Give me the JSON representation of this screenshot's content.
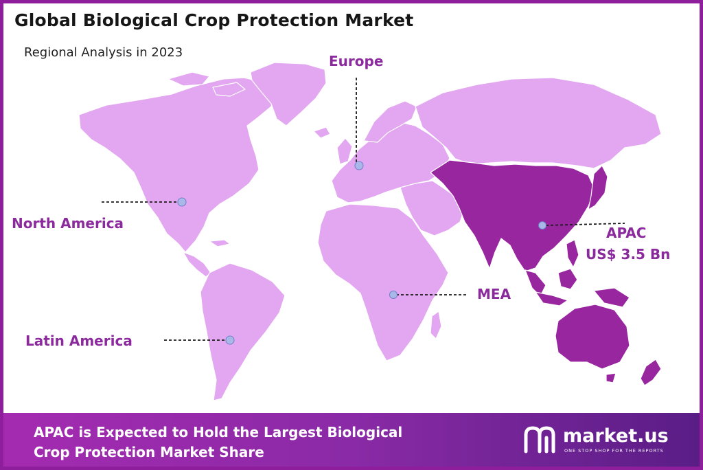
{
  "header": {
    "title": "Global Biological Crop Protection Market",
    "subtitle": "Regional Analysis in 2023"
  },
  "regions": [
    {
      "name": "North America",
      "value": ""
    },
    {
      "name": "Europe",
      "value": ""
    },
    {
      "name": "APAC",
      "value": "US$ 3.5 Bn"
    },
    {
      "name": "MEA",
      "value": ""
    },
    {
      "name": "Latin America",
      "value": ""
    }
  ],
  "colors": {
    "land": "#e3a6f0",
    "highlight": "#98269f",
    "marker": "#a9b8e8",
    "label": "#8b2a9c",
    "border": "#8e1e9b"
  },
  "footer": {
    "line1": "APAC is Expected to Hold the Largest Biological",
    "line2": "Crop Protection Market Share"
  },
  "logo": {
    "name": "market.us",
    "tagline": "ONE STOP SHOP FOR THE REPORTS"
  }
}
